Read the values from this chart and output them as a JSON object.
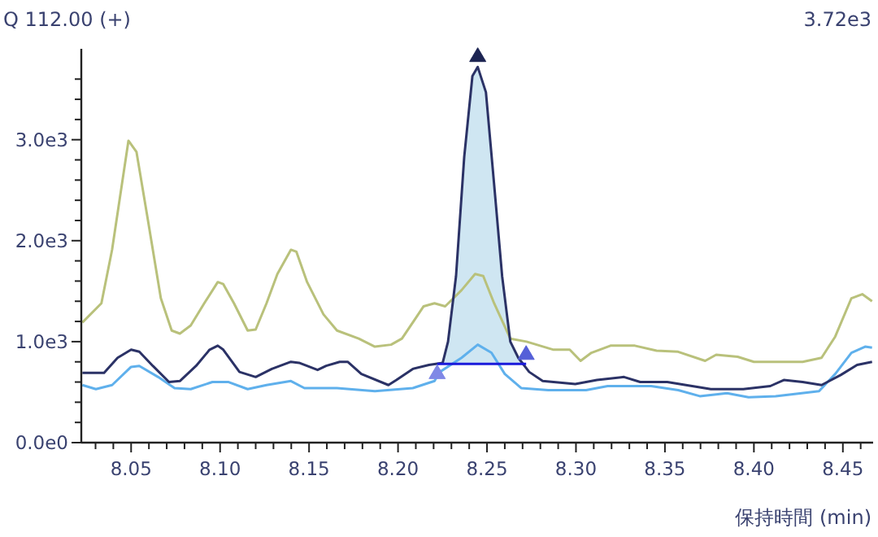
{
  "chart_data": {
    "type": "line",
    "title": "Q 112.00 (+)",
    "annotations": [
      "3.72e3"
    ],
    "xlabel": "保持時間 (min)",
    "xlim": [
      8.022,
      8.467
    ],
    "ylim": [
      0,
      3900
    ],
    "xticks": [
      {
        "value": 8.03,
        "label": null
      },
      {
        "value": 8.04,
        "label": null
      },
      {
        "value": 8.05,
        "label": "8.05"
      },
      {
        "value": 8.06,
        "label": null
      },
      {
        "value": 8.07,
        "label": null
      },
      {
        "value": 8.08,
        "label": null
      },
      {
        "value": 8.09,
        "label": null
      },
      {
        "value": 8.1,
        "label": "8.10"
      },
      {
        "value": 8.11,
        "label": null
      },
      {
        "value": 8.12,
        "label": null
      },
      {
        "value": 8.13,
        "label": null
      },
      {
        "value": 8.14,
        "label": null
      },
      {
        "value": 8.15,
        "label": "8.15"
      },
      {
        "value": 8.16,
        "label": null
      },
      {
        "value": 8.17,
        "label": null
      },
      {
        "value": 8.18,
        "label": null
      },
      {
        "value": 8.19,
        "label": null
      },
      {
        "value": 8.2,
        "label": "8.20"
      },
      {
        "value": 8.21,
        "label": null
      },
      {
        "value": 8.22,
        "label": null
      },
      {
        "value": 8.23,
        "label": null
      },
      {
        "value": 8.24,
        "label": null
      },
      {
        "value": 8.25,
        "label": "8.25"
      },
      {
        "value": 8.26,
        "label": null
      },
      {
        "value": 8.27,
        "label": null
      },
      {
        "value": 8.28,
        "label": null
      },
      {
        "value": 8.29,
        "label": null
      },
      {
        "value": 8.3,
        "label": "8.30"
      },
      {
        "value": 8.31,
        "label": null
      },
      {
        "value": 8.32,
        "label": null
      },
      {
        "value": 8.33,
        "label": null
      },
      {
        "value": 8.34,
        "label": null
      },
      {
        "value": 8.35,
        "label": "8.35"
      },
      {
        "value": 8.36,
        "label": null
      },
      {
        "value": 8.37,
        "label": null
      },
      {
        "value": 8.38,
        "label": null
      },
      {
        "value": 8.39,
        "label": null
      },
      {
        "value": 8.4,
        "label": "8.40"
      },
      {
        "value": 8.41,
        "label": null
      },
      {
        "value": 8.42,
        "label": null
      },
      {
        "value": 8.43,
        "label": null
      },
      {
        "value": 8.44,
        "label": null
      },
      {
        "value": 8.45,
        "label": "8.45"
      },
      {
        "value": 8.46,
        "label": null
      }
    ],
    "yticks": [
      {
        "value": 0,
        "label": "0.0e0"
      },
      {
        "value": 200,
        "label": null
      },
      {
        "value": 400,
        "label": null
      },
      {
        "value": 600,
        "label": null
      },
      {
        "value": 800,
        "label": null
      },
      {
        "value": 1000,
        "label": "1.0e3"
      },
      {
        "value": 1200,
        "label": null
      },
      {
        "value": 1400,
        "label": null
      },
      {
        "value": 1600,
        "label": null
      },
      {
        "value": 1800,
        "label": null
      },
      {
        "value": 2000,
        "label": "2.0e3"
      },
      {
        "value": 2200,
        "label": null
      },
      {
        "value": 2400,
        "label": null
      },
      {
        "value": 2600,
        "label": null
      },
      {
        "value": 2800,
        "label": null
      },
      {
        "value": 3000,
        "label": "3.0e3"
      },
      {
        "value": 3200,
        "label": null
      },
      {
        "value": 3400,
        "label": null
      },
      {
        "value": 3600,
        "label": null
      }
    ],
    "series": [
      {
        "type": "area",
        "color": "#cfe6f2",
        "x": [
          8.222,
          8.2251,
          8.2281,
          8.2326,
          8.2372,
          8.2418,
          8.2448,
          8.2494,
          8.254,
          8.2585,
          8.2631,
          8.2676,
          8.272
        ],
        "values": [
          780,
          790,
          1000,
          1650,
          2830,
          3630,
          3720,
          3470,
          2560,
          1650,
          1000,
          840,
          780
        ]
      },
      {
        "type": "line",
        "color": "#b9c17b",
        "x": [
          8.0226,
          8.0333,
          8.0393,
          8.0485,
          8.053,
          8.0591,
          8.0667,
          8.0728,
          8.0774,
          8.0835,
          8.0911,
          8.0987,
          8.1018,
          8.1078,
          8.1155,
          8.12,
          8.1261,
          8.1322,
          8.1398,
          8.1429,
          8.1489,
          8.1581,
          8.1657,
          8.1779,
          8.187,
          8.1961,
          8.2022,
          8.2144,
          8.2205,
          8.2265,
          8.2357,
          8.2433,
          8.2479,
          8.254,
          8.2631,
          8.2722,
          8.2874,
          8.2965,
          8.3026,
          8.3087,
          8.3194,
          8.3331,
          8.3453,
          8.3574,
          8.3726,
          8.3788,
          8.3909,
          8.4,
          8.4122,
          8.4274,
          8.438,
          8.4457,
          8.4548,
          8.4609,
          8.4664
        ],
        "values": [
          1190,
          1380,
          1910,
          2990,
          2880,
          2240,
          1430,
          1110,
          1080,
          1160,
          1380,
          1590,
          1570,
          1380,
          1110,
          1120,
          1380,
          1670,
          1910,
          1890,
          1590,
          1270,
          1110,
          1030,
          950,
          970,
          1030,
          1350,
          1380,
          1350,
          1510,
          1670,
          1650,
          1380,
          1030,
          1000,
          920,
          920,
          810,
          890,
          960,
          960,
          910,
          900,
          810,
          870,
          850,
          800,
          800,
          800,
          840,
          1050,
          1430,
          1470,
          1400
        ]
      },
      {
        "type": "line",
        "color": "#5fb0ec",
        "x": [
          8.0226,
          8.0302,
          8.0393,
          8.05,
          8.0546,
          8.0652,
          8.0744,
          8.0835,
          8.0957,
          8.1048,
          8.1155,
          8.1261,
          8.1398,
          8.1474,
          8.1657,
          8.187,
          8.2083,
          8.2205,
          8.2235,
          8.2357,
          8.2448,
          8.2525,
          8.26,
          8.2692,
          8.2844,
          8.3057,
          8.3178,
          8.3422,
          8.3575,
          8.3696,
          8.3849,
          8.397,
          8.4122,
          8.4366,
          8.4457,
          8.4548,
          8.4625,
          8.4664
        ],
        "values": [
          570,
          530,
          570,
          750,
          760,
          650,
          540,
          530,
          600,
          600,
          530,
          570,
          610,
          540,
          540,
          510,
          540,
          610,
          700,
          840,
          970,
          890,
          680,
          540,
          520,
          520,
          560,
          560,
          520,
          460,
          490,
          450,
          460,
          510,
          680,
          890,
          950,
          940
        ]
      },
      {
        "type": "line",
        "color": "#2b3266",
        "x": [
          8.0226,
          8.0348,
          8.0424,
          8.05,
          8.0546,
          8.0622,
          8.0713,
          8.0774,
          8.0865,
          8.0941,
          8.0987,
          8.1018,
          8.1109,
          8.12,
          8.1291,
          8.1398,
          8.1444,
          8.1548,
          8.1596,
          8.1672,
          8.1717,
          8.1794,
          8.1946,
          8.1991,
          8.2083,
          8.2174,
          8.2251,
          8.2281,
          8.2326,
          8.2372,
          8.2418,
          8.2448,
          8.2494,
          8.254,
          8.2585,
          8.2631,
          8.2676,
          8.2737,
          8.2813,
          8.2996,
          8.3118,
          8.327,
          8.3361,
          8.3513,
          8.3758,
          8.394,
          8.4092,
          8.4168,
          8.4274,
          8.438,
          8.4488,
          8.458,
          8.4664
        ],
        "values": [
          690,
          690,
          840,
          920,
          900,
          760,
          600,
          610,
          760,
          920,
          960,
          920,
          700,
          650,
          730,
          800,
          790,
          720,
          760,
          800,
          800,
          680,
          570,
          620,
          730,
          770,
          790,
          1000,
          1650,
          2830,
          3630,
          3720,
          3470,
          2560,
          1650,
          1000,
          840,
          700,
          610,
          580,
          620,
          650,
          600,
          600,
          530,
          530,
          560,
          620,
          600,
          570,
          670,
          770,
          800
        ]
      },
      {
        "type": "line",
        "color": "#1a1adb",
        "x": [
          8.222,
          8.247,
          8.272
        ],
        "values": [
          780,
          780,
          780
        ]
      },
      {
        "type": "scatter",
        "marker": "triangle",
        "color": "#8088e6",
        "x": [
          8.222
        ],
        "values": [
          690
        ]
      },
      {
        "type": "scatter",
        "marker": "triangle",
        "color": "#5560d8",
        "x": [
          8.272
        ],
        "values": [
          880
        ]
      },
      {
        "type": "scatter",
        "marker": "triangle",
        "color": "#1c2452",
        "x": [
          8.2448
        ],
        "values": [
          3830
        ]
      }
    ]
  }
}
